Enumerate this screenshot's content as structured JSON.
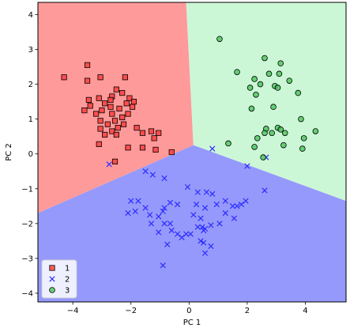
{
  "chart_data": {
    "type": "scatter",
    "title": "",
    "xlabel": "PC 1",
    "ylabel": "PC 2",
    "xlim": [
      -5.2,
      5.4
    ],
    "ylim": [
      -4.25,
      4.35
    ],
    "xticks": [
      -4,
      -2,
      0,
      2,
      4
    ],
    "yticks": [
      -4,
      -3,
      -2,
      -1,
      0,
      1,
      2,
      3,
      4
    ],
    "grid": false,
    "legend_position": "lower-left",
    "regions": [
      {
        "class": "1",
        "color": "#ff9a9a",
        "polygon": [
          [
            -5.2,
            4.35
          ],
          [
            -0.1,
            4.35
          ],
          [
            0.15,
            0.25
          ],
          [
            -5.2,
            -1.7
          ]
        ]
      },
      {
        "class": "3",
        "color": "#ccf7d7",
        "polygon": [
          [
            -0.1,
            4.35
          ],
          [
            5.4,
            4.35
          ],
          [
            5.4,
            -1.35
          ],
          [
            0.15,
            0.25
          ]
        ]
      },
      {
        "class": "2",
        "color": "#9599fb",
        "polygon": [
          [
            -5.2,
            -1.7
          ],
          [
            0.15,
            0.25
          ],
          [
            5.4,
            -1.35
          ],
          [
            5.4,
            -4.25
          ],
          [
            -5.2,
            -4.25
          ]
        ]
      }
    ],
    "series": [
      {
        "name": "1",
        "marker": "square",
        "color": "#ff4040",
        "points": [
          [
            -3.5,
            2.55
          ],
          [
            -4.3,
            2.2
          ],
          [
            -3.05,
            2.2
          ],
          [
            -2.2,
            2.2
          ],
          [
            -3.5,
            2.1
          ],
          [
            -2.5,
            1.85
          ],
          [
            -2.3,
            1.75
          ],
          [
            -2.65,
            1.65
          ],
          [
            -2.05,
            1.6
          ],
          [
            -3.45,
            1.55
          ],
          [
            -3.1,
            1.6
          ],
          [
            -2.7,
            1.55
          ],
          [
            -2.9,
            1.45
          ],
          [
            -1.9,
            1.5
          ],
          [
            -2.15,
            1.45
          ],
          [
            -3.4,
            1.38
          ],
          [
            -2.7,
            1.35
          ],
          [
            -1.95,
            1.35
          ],
          [
            -3.6,
            1.25
          ],
          [
            -3.0,
            1.25
          ],
          [
            -2.4,
            1.3
          ],
          [
            -2.65,
            1.15
          ],
          [
            -2.1,
            1.15
          ],
          [
            -3.2,
            1.15
          ],
          [
            -2.3,
            1.05
          ],
          [
            -2.55,
            0.95
          ],
          [
            -3.05,
            0.95
          ],
          [
            -2.8,
            0.85
          ],
          [
            -2.25,
            0.85
          ],
          [
            -1.8,
            0.75
          ],
          [
            -2.45,
            0.75
          ],
          [
            -3.05,
            0.72
          ],
          [
            -2.65,
            0.65
          ],
          [
            -1.3,
            0.65
          ],
          [
            -1.6,
            0.6
          ],
          [
            -2.9,
            0.55
          ],
          [
            -1.05,
            0.6
          ],
          [
            -2.5,
            0.55
          ],
          [
            -1.2,
            0.45
          ],
          [
            -3.1,
            0.28
          ],
          [
            -2.1,
            0.18
          ],
          [
            -1.6,
            0.18
          ],
          [
            -1.15,
            0.12
          ],
          [
            -0.6,
            0.05
          ],
          [
            -2.55,
            -0.22
          ]
        ]
      },
      {
        "name": "2",
        "marker": "x",
        "color": "#2c2cff",
        "points": [
          [
            0.8,
            0.15
          ],
          [
            -2.75,
            -0.3
          ],
          [
            -1.5,
            -0.5
          ],
          [
            -1.25,
            -0.6
          ],
          [
            -0.85,
            -0.7
          ],
          [
            -2.0,
            -1.35
          ],
          [
            -1.75,
            -1.35
          ],
          [
            -0.65,
            -1.4
          ],
          [
            -1.5,
            -1.55
          ],
          [
            -0.85,
            -1.55
          ],
          [
            -1.85,
            -1.65
          ],
          [
            -0.9,
            -1.65
          ],
          [
            -2.1,
            -1.7
          ],
          [
            -1.35,
            -1.75
          ],
          [
            -1.05,
            -1.8
          ],
          [
            -0.4,
            -1.45
          ],
          [
            -0.05,
            -0.95
          ],
          [
            0.3,
            -1.1
          ],
          [
            0.6,
            -1.1
          ],
          [
            0.8,
            -1.15
          ],
          [
            0.25,
            -1.45
          ],
          [
            0.55,
            -1.55
          ],
          [
            0.95,
            -1.45
          ],
          [
            1.25,
            -1.35
          ],
          [
            1.5,
            -1.5
          ],
          [
            1.8,
            -1.45
          ],
          [
            1.95,
            -1.35
          ],
          [
            1.65,
            -1.5
          ],
          [
            1.25,
            -1.7
          ],
          [
            0.4,
            -1.85
          ],
          [
            0.15,
            -1.75
          ],
          [
            -0.85,
            -2.0
          ],
          [
            -0.65,
            -2.0
          ],
          [
            -1.3,
            -2.0
          ],
          [
            -0.6,
            -2.2
          ],
          [
            -1.05,
            -2.25
          ],
          [
            -0.4,
            -2.3
          ],
          [
            -0.1,
            -2.3
          ],
          [
            0.05,
            -2.3
          ],
          [
            0.3,
            -2.1
          ],
          [
            0.45,
            -2.1
          ],
          [
            0.5,
            -2.2
          ],
          [
            0.55,
            -2.15
          ],
          [
            0.75,
            -2.05
          ],
          [
            1.05,
            -2.0
          ],
          [
            1.55,
            -1.85
          ],
          [
            2.0,
            -0.35
          ],
          [
            2.65,
            -0.1
          ],
          [
            2.6,
            -1.05
          ],
          [
            0.4,
            -2.5
          ],
          [
            0.5,
            -2.55
          ],
          [
            0.75,
            -2.65
          ],
          [
            0.55,
            -2.85
          ],
          [
            -0.75,
            -2.6
          ],
          [
            -0.25,
            -2.4
          ],
          [
            -0.9,
            -3.2
          ]
        ]
      },
      {
        "name": "3",
        "marker": "circle",
        "color": "#40c050",
        "points": [
          [
            1.05,
            3.3
          ],
          [
            2.6,
            2.75
          ],
          [
            3.15,
            2.6
          ],
          [
            1.65,
            2.35
          ],
          [
            2.75,
            2.3
          ],
          [
            3.1,
            2.3
          ],
          [
            2.25,
            2.15
          ],
          [
            3.45,
            2.1
          ],
          [
            2.45,
            2.0
          ],
          [
            2.1,
            1.9
          ],
          [
            2.95,
            1.95
          ],
          [
            3.05,
            1.9
          ],
          [
            3.75,
            1.75
          ],
          [
            2.3,
            1.7
          ],
          [
            2.9,
            1.35
          ],
          [
            2.15,
            1.3
          ],
          [
            3.85,
            1.0
          ],
          [
            3.05,
            0.75
          ],
          [
            2.65,
            0.72
          ],
          [
            3.15,
            0.7
          ],
          [
            2.6,
            0.6
          ],
          [
            2.85,
            0.6
          ],
          [
            3.3,
            0.6
          ],
          [
            4.35,
            0.65
          ],
          [
            2.35,
            0.45
          ],
          [
            3.95,
            0.45
          ],
          [
            1.35,
            0.3
          ],
          [
            2.25,
            0.2
          ],
          [
            3.25,
            0.25
          ],
          [
            3.9,
            0.15
          ],
          [
            2.55,
            -0.1
          ]
        ]
      }
    ]
  }
}
